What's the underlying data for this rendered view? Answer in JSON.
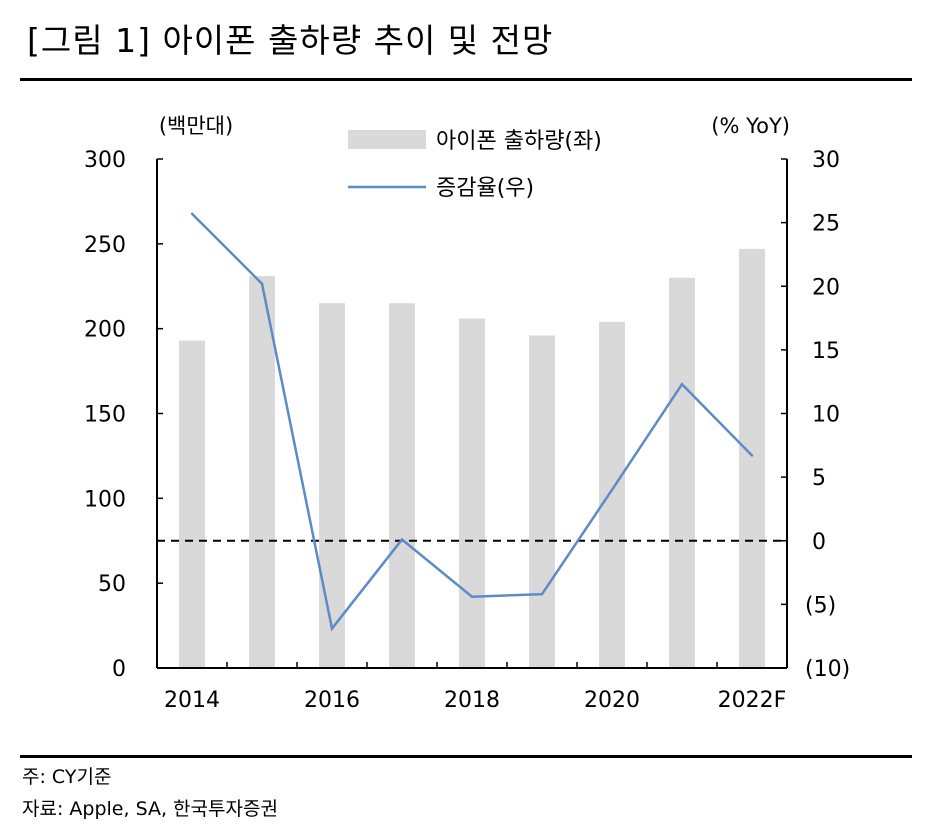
{
  "figure_title": "[그림 1] 아이폰 출하량 추이 및 전망",
  "notes": [
    "주: CY기준",
    "자료: Apple, SA, 한국투자증권"
  ],
  "chart_data": {
    "type": "bar+line",
    "left_axis_unit": "(백만대)",
    "right_axis_unit": "(% YoY)",
    "categories": [
      "2014",
      "2015",
      "2016",
      "2017",
      "2018",
      "2019",
      "2020",
      "2021",
      "2022F"
    ],
    "x_tick_labels": [
      "2014",
      "",
      "2016",
      "",
      "2018",
      "",
      "2020",
      "",
      "2022F"
    ],
    "left_ticks": [
      "0",
      "50",
      "100",
      "150",
      "200",
      "250",
      "300"
    ],
    "right_ticks": [
      "(10)",
      "(5)",
      "0",
      "5",
      "10",
      "15",
      "20",
      "25",
      "30"
    ],
    "ylim_left": [
      0,
      300
    ],
    "ylim_right": [
      -10,
      30
    ],
    "series": [
      {
        "name": "아이폰 출하량(좌)",
        "type": "bar",
        "axis": "left",
        "color": "#d9d9d9",
        "values": [
          193,
          231,
          215,
          215,
          206,
          196,
          204,
          230,
          247
        ]
      },
      {
        "name": "증감율(우)",
        "type": "line",
        "axis": "right",
        "color": "#5b8cc8",
        "values": [
          25.7,
          20.2,
          -6.9,
          0.1,
          -4.4,
          -4.2,
          4.0,
          12.3,
          6.7
        ]
      }
    ],
    "reference_line": {
      "axis": "right",
      "value": 0,
      "style": "dashed"
    },
    "legend_position": "top-center"
  }
}
